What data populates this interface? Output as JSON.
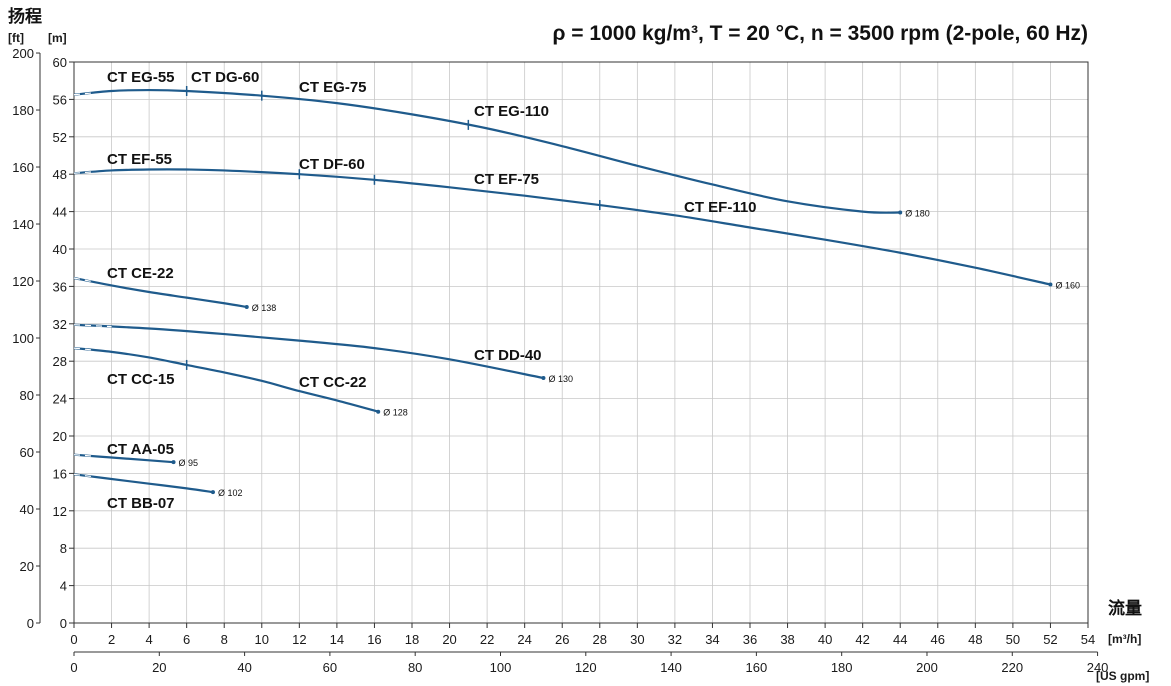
{
  "chart_data": {
    "type": "line",
    "title": "ρ = 1000 kg/m³, T = 20 °C, n = 3500 rpm (2-pole, 60 Hz)",
    "y_axis_title": "扬程",
    "y_unit_ft": "[ft]",
    "y_unit_m": "[m]",
    "x_axis_title": "流量",
    "x_unit_m3h": "[m³/h]",
    "x_unit_gpm": "[US gpm]",
    "xlim": [
      0,
      54
    ],
    "ylim": [
      0,
      60
    ],
    "x_ticks_m3h": [
      "0",
      "2",
      "4",
      "6",
      "8",
      "10",
      "12",
      "14",
      "16",
      "18",
      "20",
      "22",
      "24",
      "26",
      "28",
      "30",
      "32",
      "34",
      "36",
      "38",
      "40",
      "42",
      "44",
      "46",
      "48",
      "50",
      "52",
      "54"
    ],
    "x_ticks_gpm": [
      "0",
      "20",
      "40",
      "60",
      "80",
      "100",
      "120",
      "140",
      "160",
      "180",
      "200",
      "220",
      "240"
    ],
    "y_ticks_m": [
      "0",
      "4",
      "8",
      "12",
      "16",
      "20",
      "24",
      "28",
      "32",
      "36",
      "40",
      "44",
      "48",
      "52",
      "56",
      "60"
    ],
    "y_ticks_ft": [
      "0",
      "20",
      "40",
      "60",
      "80",
      "100",
      "120",
      "140",
      "160",
      "180",
      "200"
    ],
    "grid": true,
    "colors": {
      "curve": "#1f5b8c",
      "grid": "#c8c8c8"
    },
    "series": [
      {
        "diameter": "Ø 180",
        "x": [
          0,
          2,
          4,
          6,
          10,
          14,
          18,
          22,
          26,
          30,
          34,
          38,
          42,
          44
        ],
        "y": [
          56.5,
          56.9,
          57.0,
          56.9,
          56.4,
          55.6,
          54.4,
          52.9,
          51.0,
          48.9,
          46.9,
          45.1,
          44.0,
          43.9
        ]
      },
      {
        "diameter": "Ø 160",
        "x": [
          0,
          2,
          4,
          6,
          8,
          12,
          16,
          20,
          24,
          28,
          32,
          36,
          40,
          44,
          48,
          52
        ],
        "y": [
          48.1,
          48.4,
          48.5,
          48.5,
          48.4,
          48.0,
          47.4,
          46.6,
          45.7,
          44.7,
          43.6,
          42.3,
          41.0,
          39.6,
          38.0,
          36.2
        ]
      },
      {
        "diameter": "Ø 138",
        "x": [
          0,
          2,
          4,
          6,
          8,
          9.2
        ],
        "y": [
          36.9,
          36.1,
          35.4,
          34.8,
          34.2,
          33.8
        ]
      },
      {
        "diameter": "Ø 130",
        "x": [
          0,
          4,
          8,
          12,
          16,
          20,
          25
        ],
        "y": [
          31.9,
          31.5,
          30.9,
          30.2,
          29.4,
          28.2,
          26.2
        ]
      },
      {
        "diameter": "Ø 128",
        "x": [
          0,
          2,
          4,
          6,
          8,
          10,
          12,
          14,
          16.2
        ],
        "y": [
          29.4,
          29.0,
          28.4,
          27.6,
          26.8,
          25.9,
          24.8,
          23.8,
          22.6
        ]
      },
      {
        "diameter": "Ø 95",
        "x": [
          0,
          2,
          4,
          5.3
        ],
        "y": [
          18.0,
          17.7,
          17.4,
          17.2
        ]
      },
      {
        "diameter": "Ø 102",
        "x": [
          0,
          2,
          4,
          6,
          7.4
        ],
        "y": [
          15.9,
          15.4,
          14.9,
          14.4,
          14.0
        ]
      }
    ],
    "curve_labels": [
      {
        "text": "CT EG-55"
      },
      {
        "text": "CT DG-60"
      },
      {
        "text": "CT EG-75"
      },
      {
        "text": "CT EG-110"
      },
      {
        "text": "CT EF-55"
      },
      {
        "text": "CT DF-60"
      },
      {
        "text": "CT EF-75"
      },
      {
        "text": "CT EF-110"
      },
      {
        "text": "CT CE-22"
      },
      {
        "text": "CT DD-40"
      },
      {
        "text": "CT CC-15"
      },
      {
        "text": "CT CC-22"
      },
      {
        "text": "CT AA-05"
      },
      {
        "text": "CT BB-07"
      }
    ]
  }
}
